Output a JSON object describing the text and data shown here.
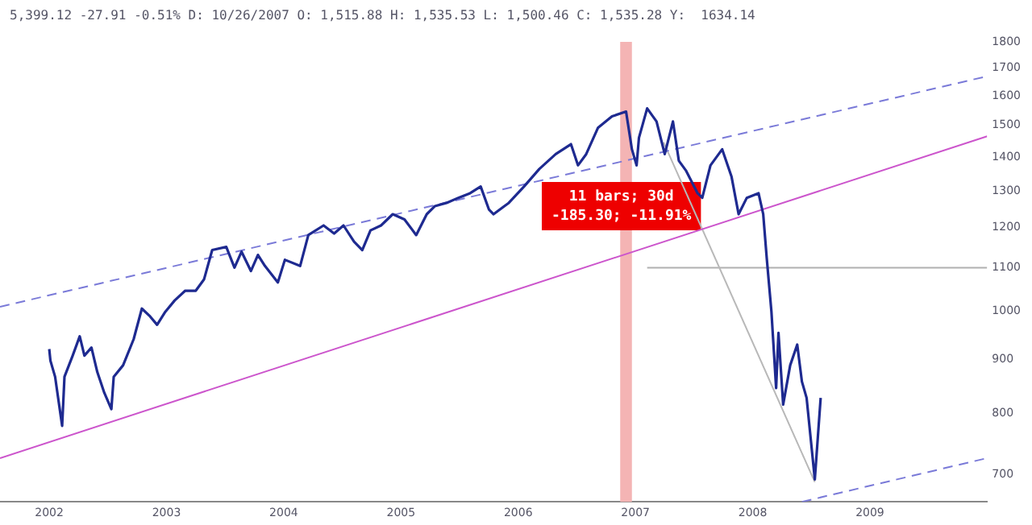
{
  "chart_data": {
    "type": "line",
    "title": "5,399.12 -27.91 -0.51% D: 10/26/2007 O: 1,515.88 H: 1,535.53 L: 1,500.46 C: 1,535.28 Y:  1634.14",
    "log": "y",
    "xlim": [
      2001.58,
      2010
    ],
    "xticks": [
      2002,
      2003,
      2004,
      2005,
      2006,
      2007,
      2008,
      2009
    ],
    "ylim": [
      660,
      1800
    ],
    "yticks": [
      700,
      800,
      900,
      1000,
      1100,
      1200,
      1300,
      1400,
      1500,
      1600,
      1700,
      1800
    ],
    "grid": false,
    "legend": false,
    "marker": "none",
    "bands": [
      {
        "axis": "x",
        "from": 2006.87,
        "to": 2006.97,
        "color": "#f4b4b4"
      }
    ],
    "annotations": [
      {
        "text": "11 bars; 30d\n-185.30; -11.91%",
        "x": 2006.88,
        "y": 1258
      }
    ],
    "series": [
      {
        "color": "#1e2a90",
        "x": [
          2002.0,
          2002.01,
          2002.05,
          2002.11,
          2002.13,
          2002.2,
          2002.26,
          2002.3,
          2002.36,
          2002.41,
          2002.47,
          2002.53,
          2002.55,
          2002.63,
          2002.72,
          2002.79,
          2002.86,
          2002.92,
          2002.99,
          2003.07,
          2003.16,
          2003.25,
          2003.32,
          2003.39,
          2003.51,
          2003.58,
          2003.64,
          2003.72,
          2003.78,
          2003.84,
          2003.95,
          2004.01,
          2004.14,
          2004.21,
          2004.34,
          2004.43,
          2004.51,
          2004.6,
          2004.67,
          2004.74,
          2004.83,
          2004.93,
          2005.03,
          2005.13,
          2005.22,
          2005.29,
          2005.39,
          2005.49,
          2005.59,
          2005.68,
          2005.75,
          2005.79,
          2005.92,
          2006.05,
          2006.18,
          2006.32,
          2006.45,
          2006.51,
          2006.58,
          2006.68,
          2006.8,
          2006.92,
          2006.97,
          2007.01,
          2007.03,
          2007.1,
          2007.18,
          2007.25,
          2007.32,
          2007.37,
          2007.43,
          2007.53,
          2007.57,
          2007.64,
          2007.74,
          2007.82,
          2007.88,
          2007.95,
          2008.05,
          2008.09,
          2008.12,
          2008.16,
          2008.2,
          2008.22,
          2008.26,
          2008.32,
          2008.38,
          2008.42,
          2008.46,
          2008.53,
          2008.58
        ],
        "values": [
          921,
          898,
          867,
          779,
          867,
          908,
          947,
          908,
          924,
          876,
          837,
          808,
          867,
          889,
          941,
          1006,
          989,
          971,
          999,
          1024,
          1046,
          1046,
          1072,
          1143,
          1151,
          1100,
          1139,
          1092,
          1131,
          1104,
          1065,
          1119,
          1104,
          1181,
          1206,
          1185,
          1206,
          1164,
          1143,
          1193,
          1206,
          1236,
          1222,
          1181,
          1236,
          1258,
          1267,
          1281,
          1294,
          1313,
          1249,
          1236,
          1267,
          1313,
          1364,
          1409,
          1440,
          1375,
          1409,
          1492,
          1530,
          1546,
          1424,
          1375,
          1460,
          1557,
          1513,
          1409,
          1513,
          1389,
          1360,
          1294,
          1281,
          1375,
          1424,
          1341,
          1236,
          1281,
          1294,
          1236,
          1123,
          999,
          846,
          954,
          816,
          889,
          930,
          858,
          828,
          693,
          828
        ]
      },
      {
        "color": "#7a7ad8",
        "line_style": "dashed",
        "x": [
          2001.58,
          2010
        ],
        "values": [
          1010,
          1670
        ]
      },
      {
        "color": "#cc55cc",
        "x": [
          2001.58,
          2010
        ],
        "values": [
          726,
          1465
        ]
      },
      {
        "color": "#7a7ad8",
        "line_style": "dashed",
        "x": [
          2008.42,
          2010
        ],
        "values": [
          660,
          726
        ]
      },
      {
        "color": "#b8b8b8",
        "x": [
          2007.24,
          2008.53
        ],
        "values": [
          1446,
          689
        ]
      },
      {
        "color": "#b0b0b0",
        "x": [
          2007.1,
          2010
        ],
        "values": [
          1100,
          1100
        ]
      }
    ]
  }
}
